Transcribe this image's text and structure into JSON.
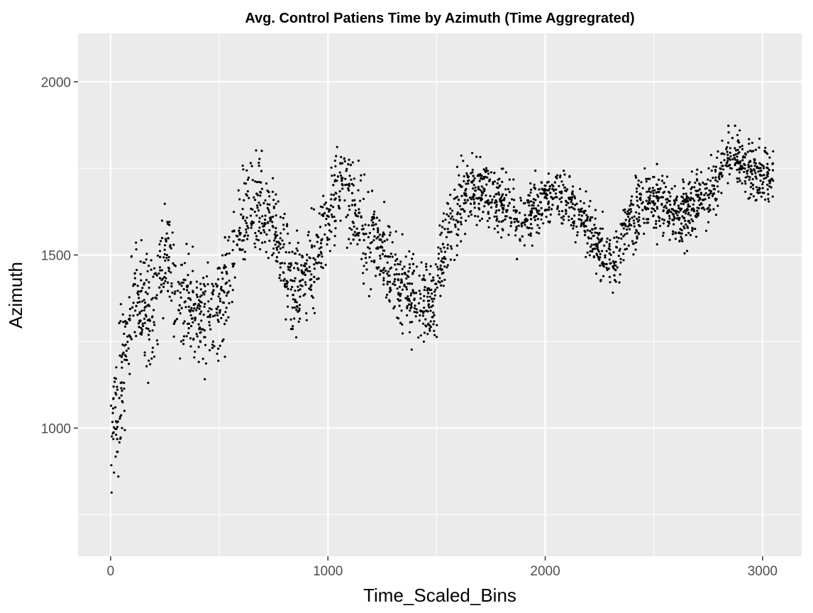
{
  "chart_data": {
    "type": "scatter",
    "title": "Avg. Control Patiens Time by Azimuth (Time Aggregrated)",
    "xlabel": "Time_Scaled_Bins",
    "ylabel": "Azimuth",
    "xlim": [
      -150,
      3180
    ],
    "ylim": [
      630,
      2140
    ],
    "xticks": [
      0,
      1000,
      2000,
      3000
    ],
    "xtick_labels": [
      "0",
      "1000",
      "2000",
      "3000"
    ],
    "yticks": [
      1000,
      1500,
      2000
    ],
    "ytick_labels": [
      "1000",
      "1500",
      "2000"
    ],
    "grid": true,
    "theme": "ggplot2 grey",
    "point_color": "#000000",
    "panel_color": "#ebebeb",
    "grid_color": "#ffffff",
    "series": [
      {
        "points_approx_count": 2900,
        "trend_x": [
          0,
          40,
          100,
          180,
          260,
          350,
          430,
          520,
          600,
          680,
          760,
          840,
          920,
          1000,
          1080,
          1160,
          1240,
          1320,
          1400,
          1480,
          1560,
          1640,
          1720,
          1800,
          1880,
          1960,
          2040,
          2120,
          2200,
          2280,
          2320,
          2380,
          2460,
          2540,
          2620,
          2700,
          2780,
          2860,
          2940,
          3050
        ],
        "trend_y": [
          980,
          1080,
          1380,
          1330,
          1500,
          1330,
          1330,
          1380,
          1600,
          1650,
          1570,
          1400,
          1450,
          1600,
          1720,
          1560,
          1530,
          1420,
          1380,
          1350,
          1580,
          1680,
          1690,
          1660,
          1600,
          1640,
          1680,
          1640,
          1580,
          1480,
          1480,
          1610,
          1650,
          1650,
          1600,
          1660,
          1710,
          1800,
          1740,
          1720
        ],
        "spread_y": [
          120,
          140,
          100,
          130,
          90,
          110,
          100,
          110,
          80,
          90,
          70,
          100,
          90,
          80,
          90,
          90,
          90,
          90,
          90,
          90,
          80,
          70,
          60,
          60,
          55,
          55,
          55,
          60,
          50,
          60,
          60,
          70,
          60,
          60,
          60,
          60,
          60,
          55,
          60,
          70
        ]
      }
    ]
  }
}
